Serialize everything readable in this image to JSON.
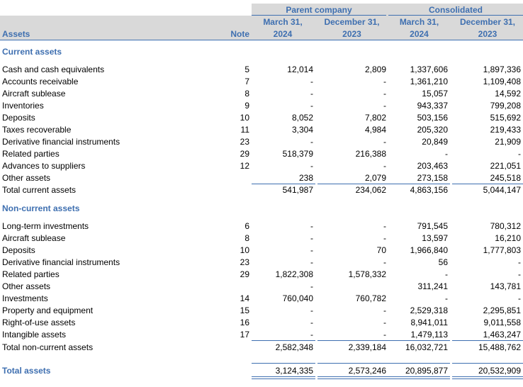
{
  "header": {
    "groups": [
      "Parent company",
      "Consolidated"
    ],
    "assets_label": "Assets",
    "note_label": "Note",
    "columns": [
      [
        "March 31,",
        "2024"
      ],
      [
        "December 31,",
        "2023"
      ],
      [
        "March 31,",
        "2024"
      ],
      [
        "December 31,",
        "2023"
      ]
    ]
  },
  "sections": [
    {
      "title": "Current assets",
      "rows": [
        {
          "label": "Cash and cash equivalents",
          "note": "5",
          "values": [
            "12,014",
            "2,809",
            "1,337,606",
            "1,897,336"
          ]
        },
        {
          "label": "Accounts receivable",
          "note": "7",
          "values": [
            "-",
            "-",
            "1,361,210",
            "1,109,408"
          ]
        },
        {
          "label": "Aircraft sublease",
          "note": "8",
          "values": [
            "-",
            "-",
            "15,057",
            "14,592"
          ]
        },
        {
          "label": "Inventories",
          "note": "9",
          "values": [
            "-",
            "-",
            "943,337",
            "799,208"
          ]
        },
        {
          "label": "Deposits",
          "note": "10",
          "values": [
            "8,052",
            "7,802",
            "503,156",
            "515,692"
          ]
        },
        {
          "label": "Taxes recoverable",
          "note": "11",
          "values": [
            "3,304",
            "4,984",
            "205,320",
            "219,433"
          ]
        },
        {
          "label": "Derivative financial instruments",
          "note": "23",
          "values": [
            "-",
            "-",
            "20,849",
            "21,909"
          ]
        },
        {
          "label": "Related parties",
          "note": "29",
          "values": [
            "518,379",
            "216,388",
            "-",
            "-"
          ]
        },
        {
          "label": "Advances to suppliers",
          "note": "12",
          "values": [
            "-",
            "-",
            "203,463",
            "221,051"
          ]
        },
        {
          "label": "Other assets",
          "values": [
            "238",
            "2,079",
            "273,158",
            "245,518"
          ]
        }
      ],
      "total": {
        "label": "Total current assets",
        "values": [
          "541,987",
          "234,062",
          "4,863,156",
          "5,044,147"
        ]
      }
    },
    {
      "title": "Non-current assets",
      "rows": [
        {
          "label": "Long-term investments",
          "note": "6",
          "values": [
            "-",
            "-",
            "791,545",
            "780,312"
          ]
        },
        {
          "label": "Aircraft sublease",
          "note": "8",
          "values": [
            "-",
            "-",
            "13,597",
            "16,210"
          ]
        },
        {
          "label": "Deposits",
          "note": "10",
          "values": [
            "-",
            "70",
            "1,966,840",
            "1,777,803"
          ]
        },
        {
          "label": "Derivative financial instruments",
          "note": "23",
          "values": [
            "-",
            "-",
            "56",
            "-"
          ]
        },
        {
          "label": "Related parties",
          "note": "29",
          "values": [
            "1,822,308",
            "1,578,332",
            "-",
            "-"
          ]
        },
        {
          "label": "Other assets",
          "values": [
            "-",
            null,
            "311,241",
            "143,781"
          ]
        },
        {
          "label": "Investments",
          "note": "14",
          "values": [
            "760,040",
            "760,782",
            "-",
            "-"
          ]
        },
        {
          "label": "Property and equipment",
          "note": "15",
          "values": [
            "-",
            "-",
            "2,529,318",
            "2,295,851"
          ]
        },
        {
          "label": "Right-of-use assets",
          "note": "16",
          "values": [
            "-",
            "-",
            "8,941,011",
            "9,011,558"
          ]
        },
        {
          "label": "Intangible assets",
          "note": "17",
          "values": [
            "-",
            "-",
            "1,479,113",
            "1,463,247"
          ]
        }
      ],
      "total": {
        "label": "Total non-current assets",
        "values": [
          "2,582,348",
          "2,339,184",
          "16,032,721",
          "15,488,762"
        ]
      }
    }
  ],
  "total": {
    "label": "Total assets",
    "values": [
      "3,124,335",
      "2,573,246",
      "20,895,877",
      "20,532,909"
    ]
  }
}
